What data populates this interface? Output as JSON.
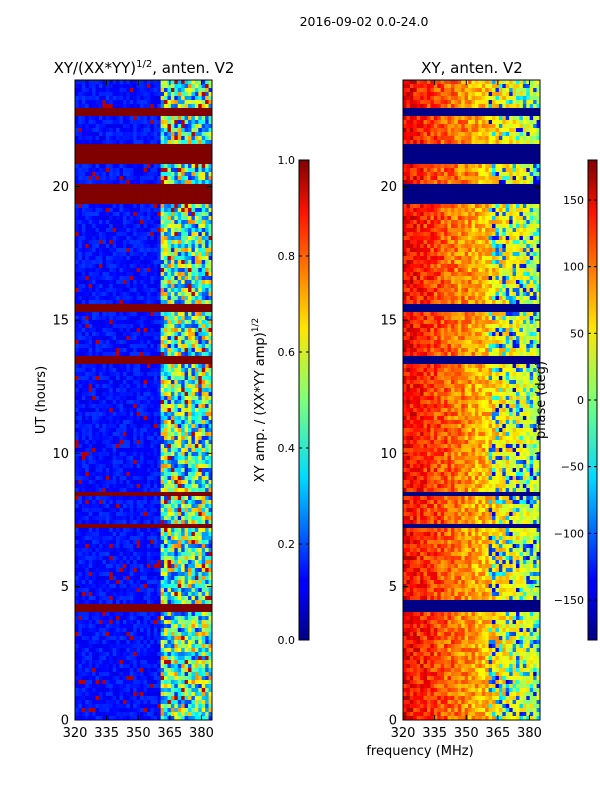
{
  "figure": {
    "suptitle": "2016-09-02 0.0-24.0",
    "shared_xlabel": "frequency (MHz)"
  },
  "chart_data": [
    {
      "type": "heatmap",
      "title_prefix": "XY/(XX*YY)",
      "title_exp": "1/2",
      "title_suffix": ", anten. V2",
      "ylabel": "UT (hours)",
      "xlim": [
        320,
        385
      ],
      "ylim": [
        0,
        24
      ],
      "xticks": [
        320,
        335,
        350,
        365,
        380
      ],
      "yticks": [
        0,
        5,
        10,
        15,
        20
      ],
      "colormap": "jet",
      "colorbar": {
        "label_text": "XY amp. / (XX*YY amp)",
        "label_exp": "1/2",
        "range": [
          0.0,
          1.0
        ],
        "ticks": [
          "0.0",
          "0.2",
          "0.4",
          "0.6",
          "0.8",
          "1.0"
        ]
      },
      "saturated_bands_ut": [
        [
          23.0,
          22.7
        ],
        [
          21.6,
          20.8
        ],
        [
          20.1,
          19.4
        ],
        [
          15.6,
          15.3
        ],
        [
          13.7,
          13.3
        ],
        [
          8.6,
          8.4
        ],
        [
          7.4,
          7.2
        ],
        [
          4.3,
          4.1
        ]
      ],
      "bright_channel_region_mhz": [
        360,
        385
      ],
      "background_level": 0.1
    },
    {
      "type": "heatmap",
      "title": "XY, anten. V2",
      "xlim": [
        320,
        385
      ],
      "ylim": [
        0,
        24
      ],
      "xticks": [
        320,
        335,
        350,
        365,
        380
      ],
      "yticks": [
        0,
        5,
        10,
        15,
        20
      ],
      "colormap": "jet",
      "colorbar": {
        "label_text": "phase (deg)",
        "range": [
          -180,
          180
        ],
        "ticks": [
          "150",
          "100",
          "50",
          "0",
          "−50",
          "−100",
          "−150"
        ]
      },
      "flagged_bands_ut": [
        [
          23.0,
          22.7
        ],
        [
          21.6,
          20.8
        ],
        [
          20.1,
          19.4
        ],
        [
          15.6,
          15.3
        ],
        [
          13.7,
          13.3
        ],
        [
          8.6,
          8.4
        ],
        [
          7.4,
          7.2
        ],
        [
          4.5,
          4.1
        ]
      ],
      "phase_low_freq_deg": 140,
      "phase_high_freq_deg": 20
    }
  ]
}
